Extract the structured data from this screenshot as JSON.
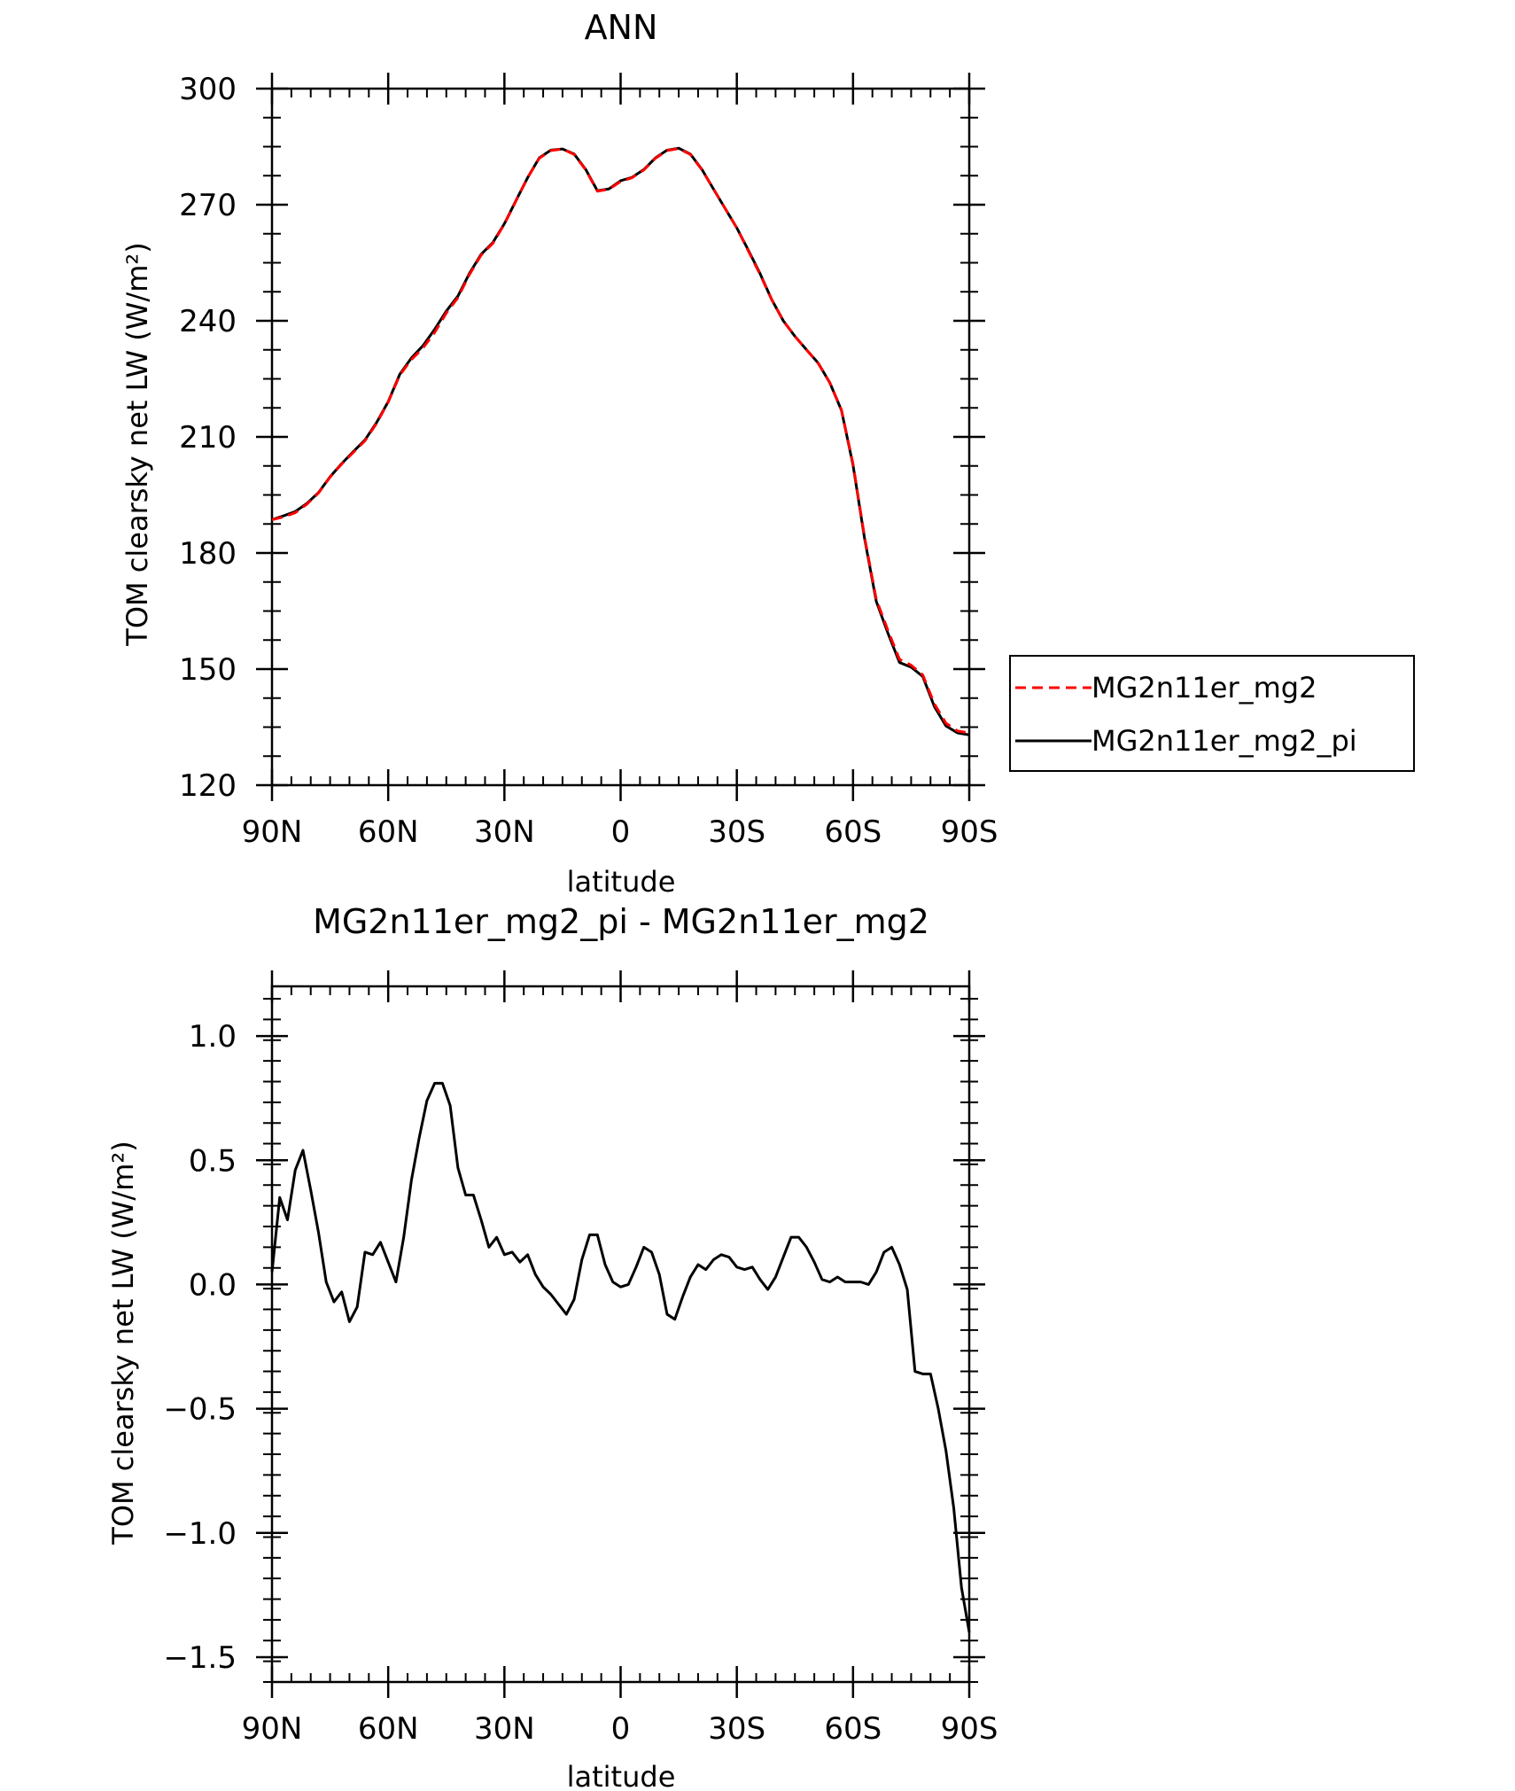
{
  "chart_data": [
    {
      "type": "line",
      "title": "ANN",
      "xlabel": "latitude",
      "ylabel": "TOM clearsky net LW (W/m²)",
      "xlim": [
        90,
        -90
      ],
      "ylim": [
        120,
        300
      ],
      "x_ticks": [
        90,
        60,
        30,
        0,
        -30,
        -60,
        -90
      ],
      "x_tick_labels": [
        "90N",
        "60N",
        "30N",
        "0",
        "30S",
        "60S",
        "90S"
      ],
      "y_ticks": [
        120,
        150,
        180,
        210,
        240,
        270,
        300
      ],
      "y_tick_labels": [
        "120",
        "150",
        "180",
        "210",
        "240",
        "270",
        "300"
      ],
      "legend_position": "right",
      "colors": {
        "MG2n11er_mg2": "#ff0000",
        "MG2n11er_mg2_pi": "#000000"
      },
      "series": [
        {
          "name": "MG2n11er_mg2",
          "style": "dashed",
          "x": [
            90,
            87,
            84,
            81,
            78,
            75,
            72,
            69,
            66,
            63,
            60,
            57,
            54,
            51,
            48,
            45,
            42,
            39,
            36,
            33,
            30,
            27,
            24,
            21,
            18,
            15,
            12,
            9,
            6,
            3,
            0,
            -3,
            -6,
            -9,
            -12,
            -15,
            -18,
            -21,
            -24,
            -27,
            -30,
            -33,
            -36,
            -39,
            -42,
            -45,
            -48,
            -51,
            -54,
            -57,
            -60,
            -63,
            -66,
            -69,
            -72,
            -75,
            -78,
            -81,
            -84,
            -87,
            -90
          ],
          "values": [
            188.6,
            189.3,
            190.4,
            192.6,
            195.5,
            199.6,
            203.0,
            206.0,
            209.0,
            213.5,
            219.0,
            226.0,
            230.0,
            233.0,
            237.0,
            242.0,
            246.0,
            252.0,
            257.0,
            260.0,
            265.0,
            271.0,
            277.0,
            282.0,
            284.0,
            284.4,
            283.0,
            279.0,
            273.5,
            274.0,
            276.0,
            277.0,
            279.0,
            282.0,
            284.0,
            284.5,
            283.0,
            279.0,
            274.0,
            269.0,
            264.0,
            258.0,
            252.0,
            245.5,
            240.0,
            236.0,
            232.5,
            229.0,
            224.0,
            217.0,
            203.0,
            184.0,
            168.0,
            160.0,
            152.5,
            151.0,
            148.5,
            141.0,
            136.0,
            134.0,
            133.5
          ]
        },
        {
          "name": "MG2n11er_mg2_pi",
          "style": "solid",
          "x": [
            90,
            87,
            84,
            81,
            78,
            75,
            72,
            69,
            66,
            63,
            60,
            57,
            54,
            51,
            48,
            45,
            42,
            39,
            36,
            33,
            30,
            27,
            24,
            21,
            18,
            15,
            12,
            9,
            6,
            3,
            0,
            -3,
            -6,
            -9,
            -12,
            -15,
            -18,
            -21,
            -24,
            -27,
            -30,
            -33,
            -36,
            -39,
            -42,
            -45,
            -48,
            -51,
            -54,
            -57,
            -60,
            -63,
            -66,
            -69,
            -72,
            -75,
            -78,
            -81,
            -84,
            -87,
            -90
          ],
          "values": [
            188.6,
            189.6,
            190.7,
            192.8,
            195.6,
            199.7,
            203.1,
            206.2,
            209.2,
            213.7,
            219.1,
            226.2,
            230.4,
            233.6,
            237.8,
            242.5,
            246.4,
            252.3,
            257.2,
            260.2,
            265.1,
            271.1,
            277.0,
            282.1,
            284.1,
            284.4,
            283.1,
            279.1,
            273.6,
            274.1,
            276.2,
            277.1,
            279.1,
            282.1,
            284.1,
            284.6,
            283.1,
            279.1,
            274.0,
            269.0,
            264.0,
            258.2,
            252.2,
            245.5,
            240.0,
            236.0,
            232.5,
            229.1,
            224.0,
            216.9,
            202.7,
            183.6,
            167.5,
            159.3,
            151.7,
            150.5,
            148.1,
            140.3,
            135.3,
            133.5,
            133.0
          ]
        }
      ]
    },
    {
      "type": "line",
      "title": "MG2n11er_mg2_pi - MG2n11er_mg2",
      "xlabel": "latitude",
      "ylabel": "TOM clearsky net LW (W/m²)",
      "xlim": [
        90,
        -90
      ],
      "ylim": [
        -1.6,
        1.2
      ],
      "x_ticks": [
        90,
        60,
        30,
        0,
        -30,
        -60,
        -90
      ],
      "x_tick_labels": [
        "90N",
        "60N",
        "30N",
        "0",
        "30S",
        "60S",
        "90S"
      ],
      "y_ticks": [
        -1.5,
        -1.0,
        -0.5,
        0.0,
        0.5,
        1.0
      ],
      "y_tick_labels": [
        "−1.5",
        "−1.0",
        "−0.5",
        "0.0",
        "0.5",
        "1.0"
      ],
      "series": [
        {
          "name": "",
          "style": "solid",
          "x": [
            90,
            88,
            86,
            84,
            82,
            80,
            78,
            76,
            74,
            72,
            70,
            68,
            66,
            64,
            62,
            60,
            58,
            56,
            54,
            52,
            50,
            48,
            46,
            44,
            42,
            40,
            38,
            36,
            34,
            32,
            30,
            28,
            26,
            24,
            22,
            20,
            18,
            16,
            14,
            12,
            10,
            8,
            6,
            4,
            2,
            0,
            -2,
            -4,
            -6,
            -8,
            -10,
            -12,
            -14,
            -16,
            -18,
            -20,
            -22,
            -24,
            -26,
            -28,
            -30,
            -32,
            -34,
            -36,
            -38,
            -40,
            -42,
            -44,
            -46,
            -48,
            -50,
            -52,
            -54,
            -56,
            -58,
            -60,
            -62,
            -64,
            -66,
            -68,
            -70,
            -72,
            -74,
            -76,
            -78,
            -80,
            -82,
            -84,
            -86,
            -88,
            -90
          ],
          "values": [
            0.05,
            0.35,
            0.26,
            0.46,
            0.54,
            0.38,
            0.21,
            0.01,
            -0.07,
            -0.03,
            -0.15,
            -0.09,
            0.13,
            0.12,
            0.17,
            0.09,
            0.01,
            0.19,
            0.42,
            0.59,
            0.74,
            0.81,
            0.81,
            0.72,
            0.47,
            0.36,
            0.36,
            0.26,
            0.15,
            0.19,
            0.12,
            0.13,
            0.09,
            0.12,
            0.04,
            -0.01,
            -0.04,
            -0.08,
            -0.12,
            -0.06,
            0.1,
            0.2,
            0.2,
            0.08,
            0.01,
            -0.01,
            0.0,
            0.07,
            0.15,
            0.13,
            0.04,
            -0.12,
            -0.14,
            -0.05,
            0.03,
            0.08,
            0.06,
            0.1,
            0.12,
            0.11,
            0.07,
            0.06,
            0.07,
            0.02,
            -0.02,
            0.03,
            0.11,
            0.19,
            0.19,
            0.15,
            0.09,
            0.02,
            0.01,
            0.03,
            0.01,
            0.01,
            0.01,
            0.0,
            0.05,
            0.13,
            0.15,
            0.08,
            -0.02,
            -0.35,
            -0.36,
            -0.36,
            -0.5,
            -0.67,
            -0.9,
            -1.22,
            -1.4
          ]
        }
      ]
    }
  ]
}
